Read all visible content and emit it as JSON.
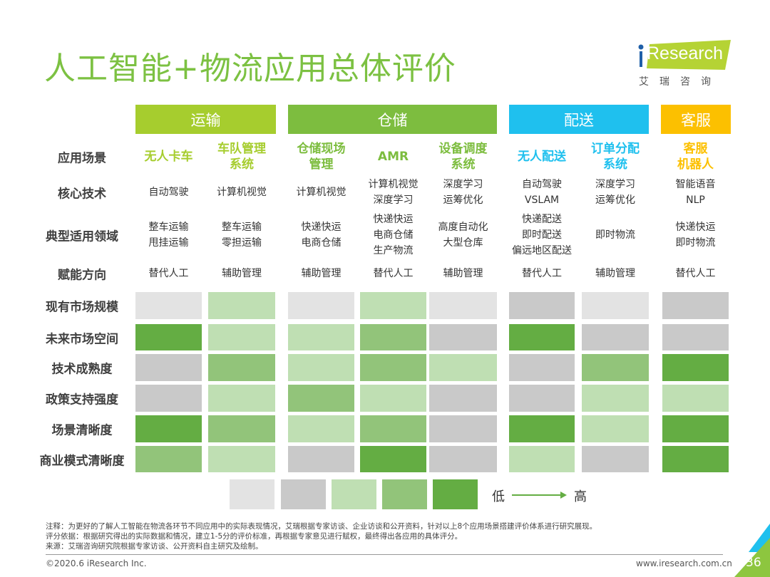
{
  "title": "人工智能+物流应用总体评价",
  "logo": {
    "brand": "iResearch",
    "cn": "艾瑞咨询"
  },
  "categories": [
    {
      "label": "运输",
      "color": "#a6cd2e"
    },
    {
      "label": "仓储",
      "color": "#7dbd3f"
    },
    {
      "label": "配送",
      "color": "#1fc0ee"
    },
    {
      "label": "客服",
      "color": "#fcc000"
    }
  ],
  "row_labels": [
    "应用场景",
    "核心技术",
    "典型适用领域",
    "赋能方向",
    "现有市场规模",
    "未来市场空间",
    "技术成熟度",
    "政策支持强度",
    "场景清晰度",
    "商业模式清晰度"
  ],
  "scenarios": [
    {
      "category": 0,
      "name": "无人卡车",
      "tech": "自动驾驶",
      "domain": "整车运输\n甩挂运输",
      "role": "替代人工"
    },
    {
      "category": 0,
      "name": "车队管理\n系统",
      "tech": "计算机视觉",
      "domain": "整车运输\n零担运输",
      "role": "辅助管理"
    },
    {
      "category": 1,
      "name": "仓储现场\n管理",
      "tech": "计算机视觉",
      "domain": "快递快运\n电商仓储",
      "role": "辅助管理"
    },
    {
      "category": 1,
      "name": "AMR",
      "tech": "计算机视觉\n深度学习",
      "domain": "快递快运\n电商仓储\n生产物流",
      "role": "替代人工"
    },
    {
      "category": 1,
      "name": "设备调度\n系统",
      "tech": "深度学习\n运筹优化",
      "domain": "高度自动化\n大型仓库",
      "role": "辅助管理"
    },
    {
      "category": 2,
      "name": "无人配送",
      "tech": "自动驾驶\nVSLAM",
      "domain": "快递配送\n即时配送\n偏远地区配送",
      "role": "替代人工"
    },
    {
      "category": 2,
      "name": "订单分配\n系统",
      "tech": "深度学习\n运筹优化",
      "domain": "即时物流",
      "role": "辅助管理"
    },
    {
      "category": 3,
      "name": "客服\n机器人",
      "tech": "智能语音\nNLP",
      "domain": "快递快运\n即时物流",
      "role": "替代人工"
    }
  ],
  "ratings": [
    [
      1,
      3,
      1,
      3,
      1,
      2,
      1,
      2
    ],
    [
      5,
      3,
      3,
      4,
      2,
      5,
      2,
      2
    ],
    [
      2,
      4,
      3,
      4,
      3,
      2,
      4,
      5
    ],
    [
      2,
      3,
      4,
      3,
      2,
      2,
      3,
      3
    ],
    [
      5,
      4,
      3,
      4,
      2,
      5,
      3,
      5
    ],
    [
      4,
      3,
      2,
      5,
      2,
      3,
      2,
      5
    ]
  ],
  "rating_scale": {
    "min": 1,
    "max": 5
  },
  "level_colors": [
    "#e3e3e3",
    "#c9c9c9",
    "#bfdfb3",
    "#92c47a",
    "#64ad43"
  ],
  "legend": {
    "low": "低",
    "high": "高"
  },
  "notes": [
    "注释：为更好的了解人工智能在物流各环节不同应用中的实际表现情况，艾瑞根据专家访谈、企业访谈和公开资料，针对以上8个应用场景搭建评价体系进行研究展现。",
    "评分依据：根据研究得出的实际数据和情况，建立1-5分的评价标准，再根据专家意见进行赋权，最终得出各应用的具体评分。",
    "来源：艾瑞咨询研究院根据专家访谈、公开资料自主研究及绘制。"
  ],
  "footer": {
    "copyright": "©2020.6 iResearch Inc.",
    "website": "www.iresearch.com.cn",
    "page": "36"
  }
}
